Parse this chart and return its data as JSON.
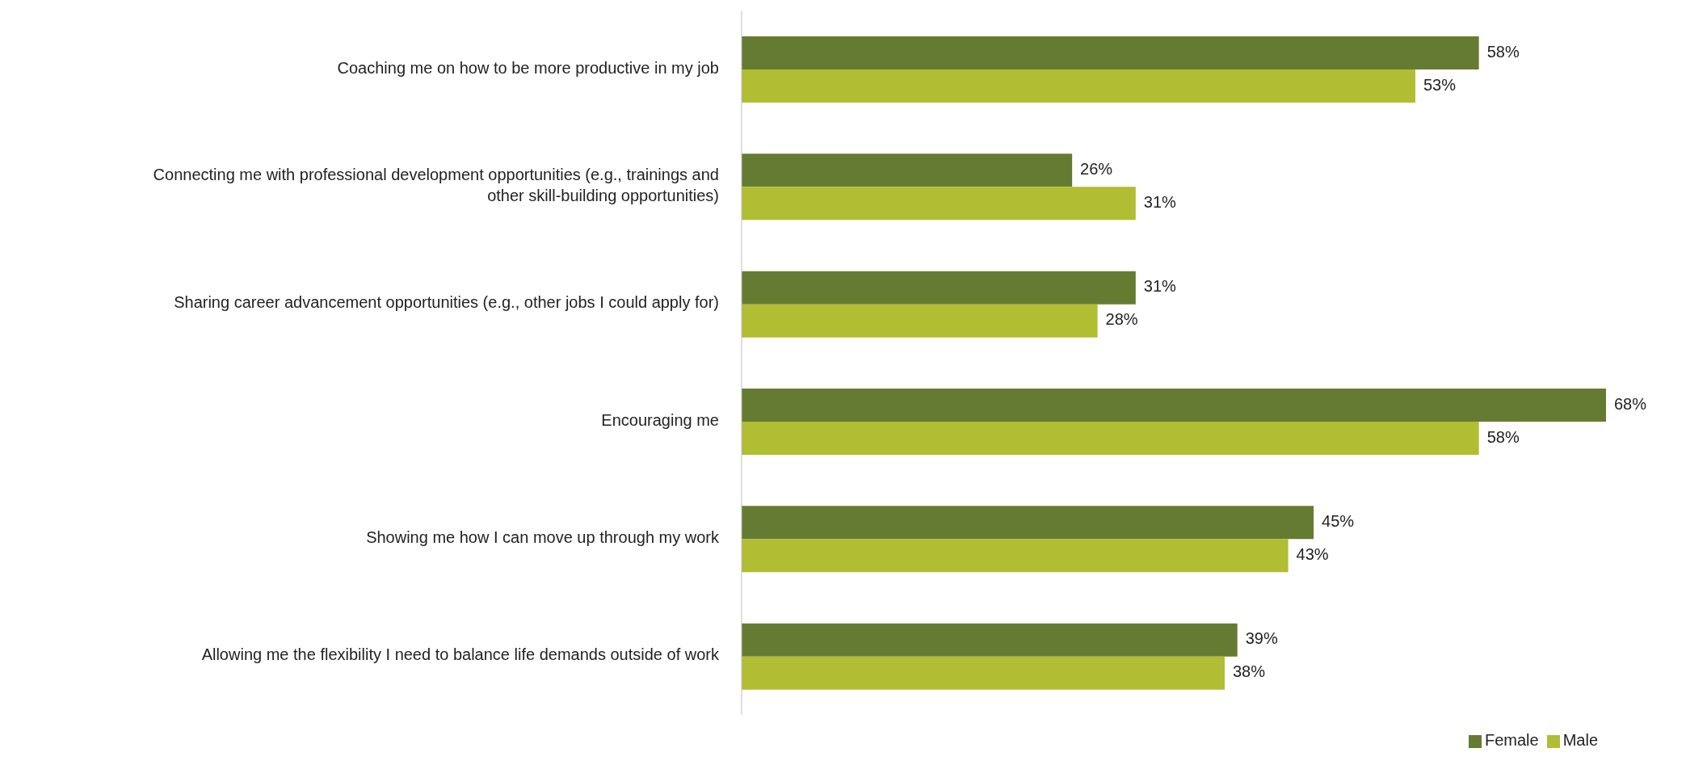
{
  "chart_data": {
    "type": "bar",
    "orientation": "horizontal",
    "legend": "bottom",
    "categories": [
      "Coaching me on how to be more productive in my job",
      "Connecting me with professional development opportunities (e.g., trainings and other skill-building opportunities)",
      "Sharing career advancement opportunities (e.g., other jobs I could apply for)",
      "Encouraging me",
      "Showing me how I can move up through my work",
      "Allowing me the flexibility I need to balance life demands outside of work"
    ],
    "series": [
      {
        "name": "Female",
        "color": "#667b32",
        "values": [
          58,
          26,
          31,
          68,
          45,
          39
        ],
        "value_labels": [
          "58%",
          "26%",
          "31%",
          "68%",
          "45%",
          "39%"
        ]
      },
      {
        "name": "Male",
        "color": "#b1bd33",
        "values": [
          53,
          31,
          28,
          58,
          43,
          38
        ],
        "value_labels": [
          "53%",
          "31%",
          "28%",
          "58%",
          "43%",
          "38%"
        ]
      }
    ]
  }
}
